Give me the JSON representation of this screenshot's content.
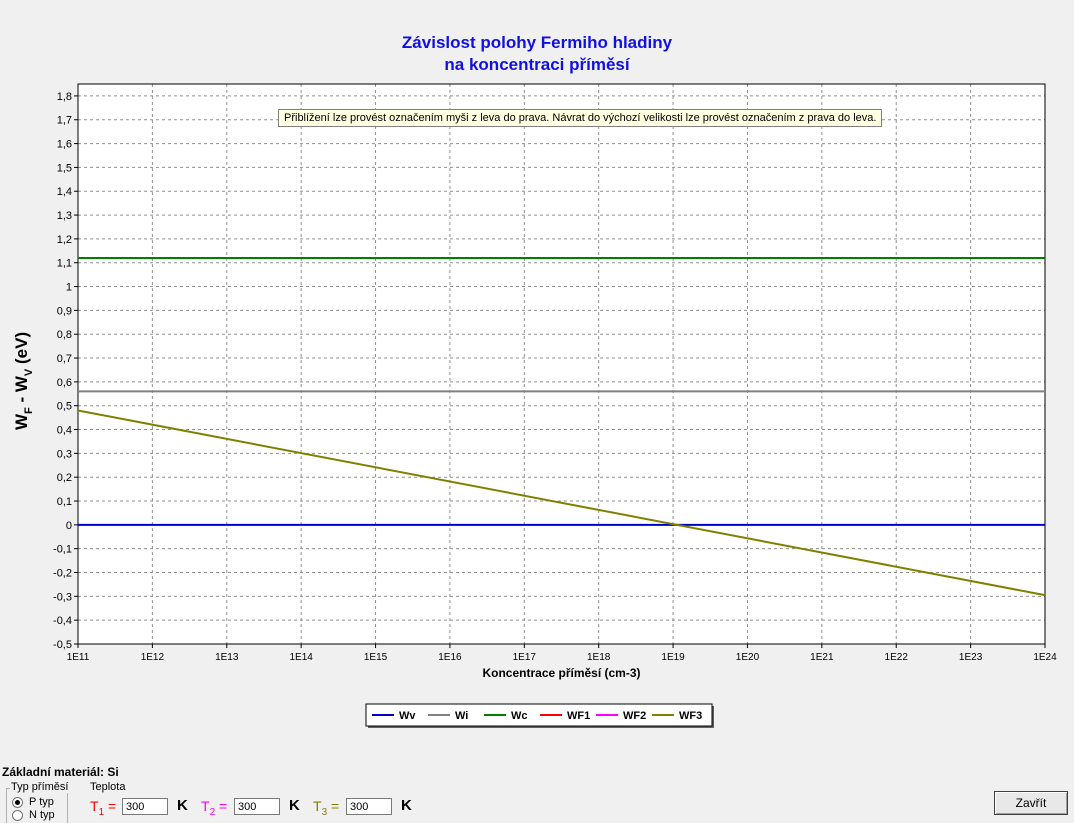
{
  "window": {
    "title_line1": "Závislost polohy Fermiho hladiny",
    "title_line2": "na koncentraci příměsí",
    "tooltip": "Přiblížení lze provést označením myši z leva do prava. Návrat do výchozí velikosti lze provést označením z prava do leva."
  },
  "chart_data": {
    "type": "line",
    "title": "Závislost polohy Fermiho hladiny na koncentraci příměsí",
    "xlabel": "Koncentrace příměsí (cm-3)",
    "ylabel_main": "W",
    "ylabel_sub1": "F",
    "ylabel_mid": " - W",
    "ylabel_sub2": "V",
    "ylabel_tail": " (eV)",
    "x_log_exponents": [
      11,
      12,
      13,
      14,
      15,
      16,
      17,
      18,
      19,
      20,
      21,
      22,
      23,
      24
    ],
    "x_tick_labels": [
      "1E11",
      "1E12",
      "1E13",
      "1E14",
      "1E15",
      "1E16",
      "1E17",
      "1E18",
      "1E19",
      "1E20",
      "1E21",
      "1E22",
      "1E23",
      "1E24"
    ],
    "y_ticks": [
      -0.5,
      -0.4,
      -0.3,
      -0.2,
      -0.1,
      0,
      0.1,
      0.2,
      0.3,
      0.4,
      0.5,
      0.6,
      0.7,
      0.8,
      0.9,
      1,
      1.1,
      1.2,
      1.3,
      1.4,
      1.5,
      1.6,
      1.7,
      1.8
    ],
    "y_tick_labels": [
      "-0,5",
      "-0,4",
      "-0,3",
      "-0,2",
      "-0,1",
      "0",
      "0,1",
      "0,2",
      "0,3",
      "0,4",
      "0,5",
      "0,6",
      "0,7",
      "0,8",
      "0,9",
      "1",
      "1,1",
      "1,2",
      "1,3",
      "1,4",
      "1,5",
      "1,6",
      "1,7",
      "1,8"
    ],
    "xlim_exp": [
      11,
      24
    ],
    "ylim": [
      -0.5,
      1.85
    ],
    "grid": true,
    "legend_placement": "bottom-center",
    "series": [
      {
        "name": "Wv",
        "color": "#0000cc",
        "x_exp": [
          11,
          24
        ],
        "y": [
          0,
          0
        ]
      },
      {
        "name": "Wi",
        "color": "#808080",
        "x_exp": [
          11,
          24
        ],
        "y": [
          0.56,
          0.56
        ]
      },
      {
        "name": "Wc",
        "color": "#008000",
        "x_exp": [
          11,
          24
        ],
        "y": [
          1.12,
          1.12
        ]
      },
      {
        "name": "WF1",
        "color": "#ff0000",
        "x_exp": [],
        "y": []
      },
      {
        "name": "WF2",
        "color": "#ff00ff",
        "x_exp": [],
        "y": []
      },
      {
        "name": "WF3",
        "color": "#808000",
        "x_exp": [
          11,
          24
        ],
        "y": [
          0.48,
          -0.295
        ]
      }
    ]
  },
  "controls": {
    "material_label": "Základní materiál: Si",
    "type_group_caption": "Typ příměsí",
    "radio_p": "P typ",
    "radio_n": "N typ",
    "teplota_label": "Teplota",
    "t1_letter": "T",
    "t1_sub": "1",
    "t1_eq": " =",
    "t1_color": "#ff0000",
    "t1_value": "300",
    "t2_letter": "T",
    "t2_sub": "2",
    "t2_eq": " =",
    "t2_color": "#ff00ff",
    "t2_value": "300",
    "t3_letter": "T",
    "t3_sub": "3",
    "t3_eq": " =",
    "t3_color": "#808000",
    "t3_value": "300",
    "unit": "K",
    "close_button": "Zavřít"
  }
}
